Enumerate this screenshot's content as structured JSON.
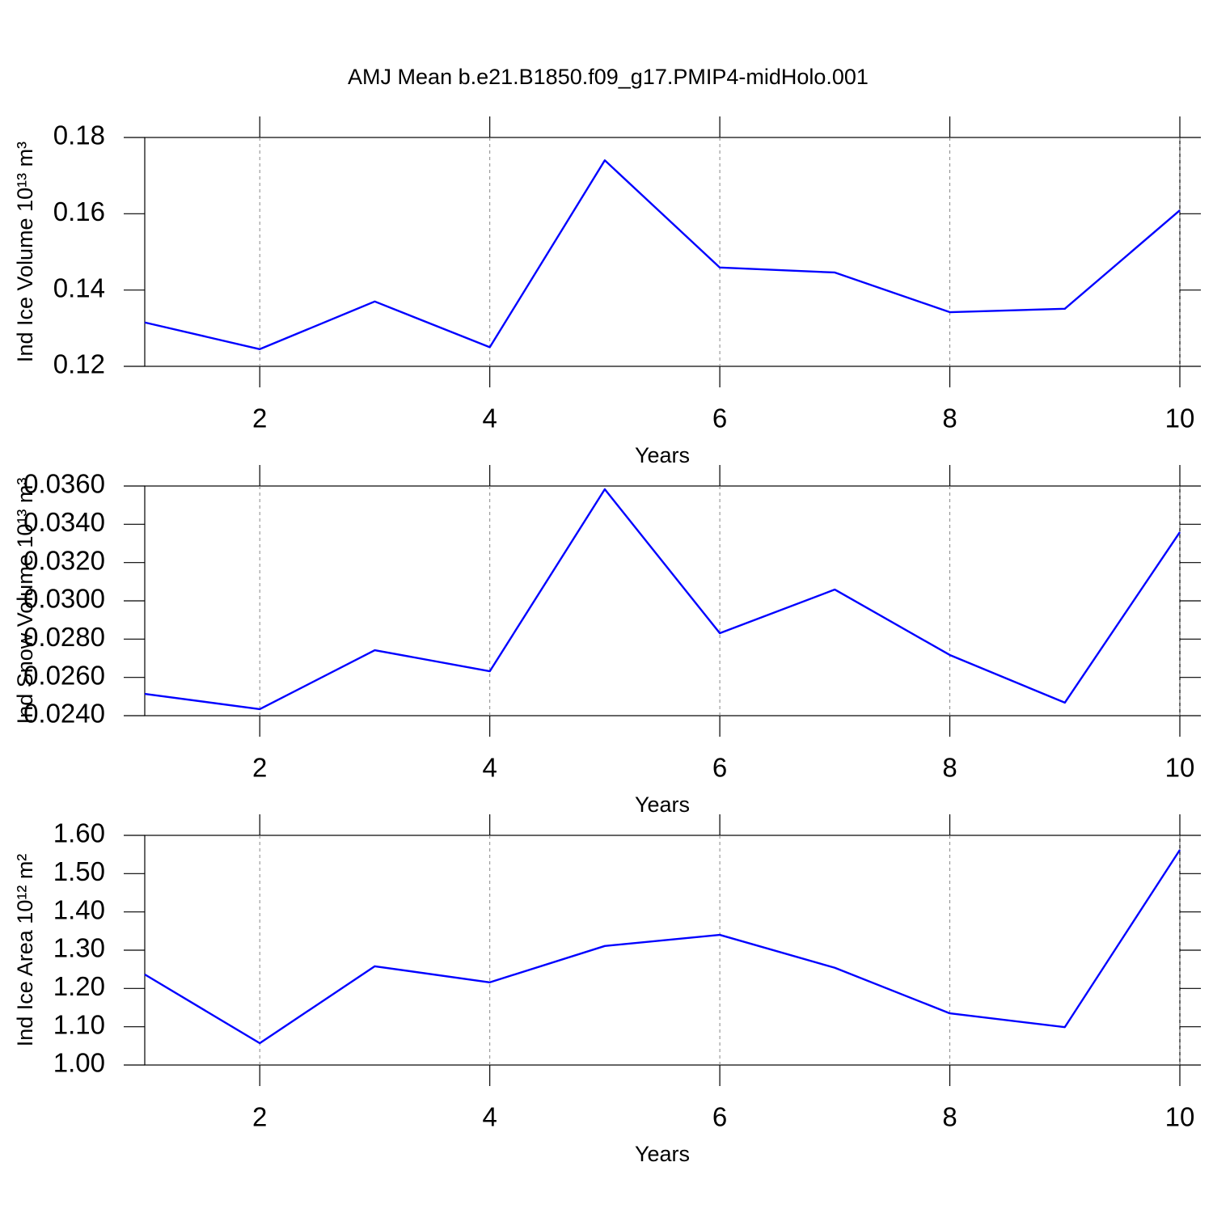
{
  "chart_data": [
    {
      "type": "line",
      "title": "AMJ Mean b.e21.B1850.f09_g17.PMIP4-midHolo.001",
      "xlabel": "Years",
      "ylabel": "Ind Ice Volume 10¹³ m³",
      "x": [
        1,
        2,
        3,
        4,
        5,
        6,
        7,
        8,
        9,
        10
      ],
      "series": [
        {
          "color": "#0000ff",
          "values": [
            0.1315,
            0.1245,
            0.137,
            0.125,
            0.174,
            0.1459,
            0.1446,
            0.1342,
            0.1351,
            0.1609
          ]
        }
      ],
      "xlim": [
        1,
        10
      ],
      "xticks": [
        2,
        4,
        6,
        8,
        10
      ],
      "ylim": [
        0.12,
        0.18
      ],
      "yticks": [
        0.12,
        0.14,
        0.16,
        0.18
      ],
      "grid": "x"
    },
    {
      "type": "line",
      "xlabel": "Years",
      "ylabel": "Ind Snow Volume 10¹³ m³",
      "x": [
        1,
        2,
        3,
        4,
        5,
        6,
        7,
        8,
        9,
        10
      ],
      "series": [
        {
          "color": "#0000ff",
          "values": [
            0.02514,
            0.02434,
            0.02742,
            0.02632,
            0.03583,
            0.02831,
            0.03059,
            0.02717,
            0.02468,
            0.03359
          ]
        }
      ],
      "xlim": [
        1,
        10
      ],
      "xticks": [
        2,
        4,
        6,
        8,
        10
      ],
      "ylim": [
        0.024,
        0.036
      ],
      "yticks": [
        {
          "value": 0.024,
          "label": "0.0240"
        },
        {
          "value": 0.026,
          "label": "0.0260"
        },
        {
          "value": 0.028,
          "label": "0.0280"
        },
        {
          "value": 0.03,
          "label": "0.0300"
        },
        {
          "value": 0.032,
          "label": "0.0320"
        },
        {
          "value": 0.034,
          "label": "0.0340"
        },
        {
          "value": 0.036,
          "label": "0.0360"
        }
      ],
      "grid": "x"
    },
    {
      "type": "line",
      "xlabel": "Years",
      "ylabel": "Ind Ice Area 10¹² m²",
      "x": [
        1,
        2,
        3,
        4,
        5,
        6,
        7,
        8,
        9,
        10
      ],
      "series": [
        {
          "color": "#0000ff",
          "values": [
            1.2366,
            1.057,
            1.258,
            1.216,
            1.311,
            1.34,
            1.254,
            1.135,
            1.099,
            1.562
          ]
        }
      ],
      "xlim": [
        1,
        10
      ],
      "xticks": [
        2,
        4,
        6,
        8,
        10
      ],
      "ylim": [
        1.0,
        1.6
      ],
      "yticks": [
        {
          "value": 1.0,
          "label": "1.00"
        },
        {
          "value": 1.1,
          "label": "1.10"
        },
        {
          "value": 1.2,
          "label": "1.20"
        },
        {
          "value": 1.3,
          "label": "1.30"
        },
        {
          "value": 1.4,
          "label": "1.40"
        },
        {
          "value": 1.5,
          "label": "1.50"
        },
        {
          "value": 1.6,
          "label": "1.60"
        }
      ],
      "grid": "x"
    }
  ]
}
